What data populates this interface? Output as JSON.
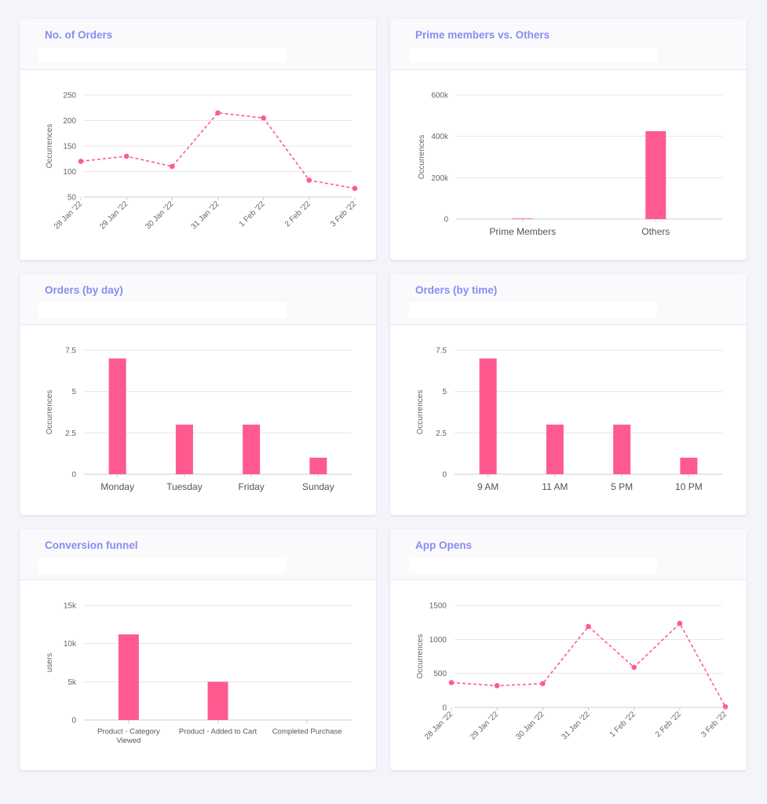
{
  "colors": {
    "series": "#ff5a8f",
    "grid": "#e5e5e5",
    "axis": "#c8c8e8"
  },
  "chart_data": [
    {
      "id": "orders",
      "type": "line",
      "title": "No. of Orders",
      "ylabel": "Occurrences",
      "ylim": [
        50,
        250
      ],
      "yticks": [
        "50",
        "100",
        "150",
        "200",
        "250"
      ],
      "x": [
        "28 Jan '22",
        "29 Jan '22",
        "30 Jan '22",
        "31 Jan '22",
        "1 Feb '22",
        "2 Feb '22",
        "3 Feb '22"
      ],
      "values": [
        120,
        130,
        110,
        215,
        205,
        83,
        67
      ],
      "dashed": true
    },
    {
      "id": "prime",
      "type": "bar",
      "title": "Prime members vs. Others",
      "ylabel": "Occurrences",
      "ylim": [
        0,
        600000
      ],
      "yticks": [
        "0",
        "200k",
        "400k",
        "600k"
      ],
      "categories": [
        "Prime Members",
        "Others"
      ],
      "values": [
        3000,
        425000
      ]
    },
    {
      "id": "byday",
      "type": "bar",
      "title": "Orders (by day)",
      "ylabel": "Occurrences",
      "ylim": [
        0,
        7.5
      ],
      "yticks": [
        "0",
        "2.5",
        "5",
        "7.5"
      ],
      "categories": [
        "Monday",
        "Tuesday",
        "Friday",
        "Sunday"
      ],
      "values": [
        7,
        3,
        3,
        1
      ]
    },
    {
      "id": "bytime",
      "type": "bar",
      "title": "Orders (by time)",
      "ylabel": "Occurrences",
      "ylim": [
        0,
        7.5
      ],
      "yticks": [
        "0",
        "2.5",
        "5",
        "7.5"
      ],
      "categories": [
        "9 AM",
        "11 AM",
        "5 PM",
        "10 PM"
      ],
      "values": [
        7,
        3,
        3,
        1
      ]
    },
    {
      "id": "funnel",
      "type": "bar",
      "title": "Conversion funnel",
      "ylabel": "users",
      "ylim": [
        0,
        15000
      ],
      "yticks": [
        "0",
        "5k",
        "10k",
        "15k"
      ],
      "categories": [
        [
          "Product - Category",
          "Viewed"
        ],
        [
          "Product - Added to Cart"
        ],
        [
          "Completed Purchase"
        ]
      ],
      "values": [
        11200,
        5000,
        0
      ]
    },
    {
      "id": "appopens",
      "type": "line",
      "title": "App Opens",
      "ylabel": "Occurrences",
      "ylim": [
        0,
        1500
      ],
      "yticks": [
        "0",
        "500",
        "1000",
        "1500"
      ],
      "x": [
        "28 Jan '22",
        "29 Jan '22",
        "30 Jan '22",
        "31 Jan '22",
        "1 Feb '22",
        "2 Feb '22",
        "3 Feb '22"
      ],
      "values": [
        365,
        320,
        350,
        1190,
        590,
        1235,
        10
      ],
      "dashed": true
    }
  ]
}
